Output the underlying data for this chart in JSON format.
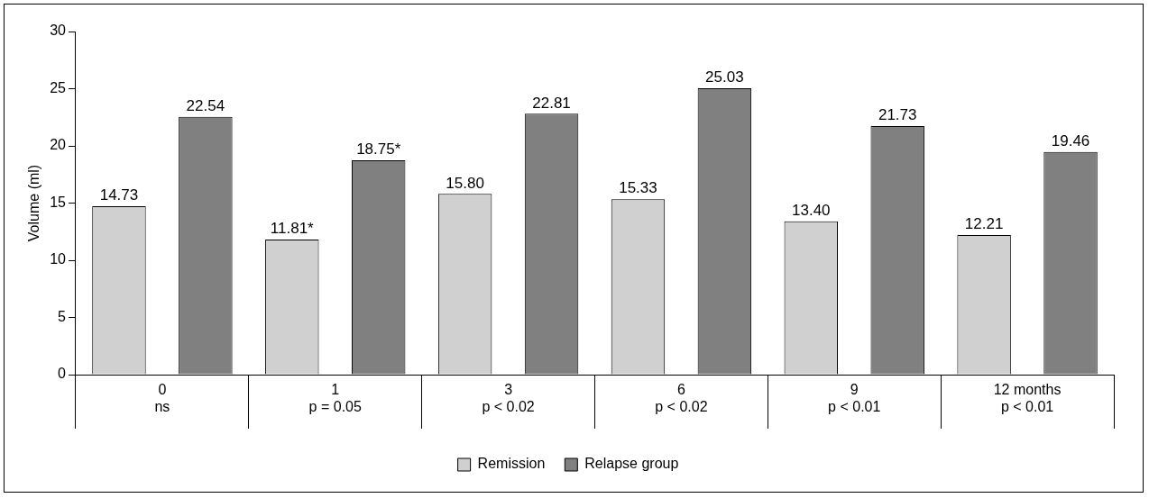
{
  "chart_data": {
    "type": "bar",
    "ylabel": "Volume (ml)",
    "categories": [
      "0\nns",
      "1\np = 0.05",
      "3\np < 0.02",
      "6\np < 0.02",
      "9\np < 0.01",
      "12 months\np < 0.01"
    ],
    "series": [
      {
        "name": "Remission",
        "color": "#d0d0d0",
        "values": [
          14.73,
          11.81,
          15.8,
          15.33,
          13.4,
          12.21
        ],
        "value_labels": [
          "14.73",
          "11.81*",
          "15.80",
          "15.33",
          "13.40",
          "12.21"
        ]
      },
      {
        "name": "Relapse group",
        "color": "#808080",
        "values": [
          22.54,
          18.75,
          22.81,
          25.03,
          21.73,
          19.46
        ],
        "value_labels": [
          "22.54",
          "18.75*",
          "22.81",
          "25.03",
          "21.73",
          "19.46"
        ]
      }
    ],
    "ylim": [
      0,
      30
    ],
    "yticks": [
      0,
      5,
      10,
      15,
      20,
      25,
      30
    ],
    "grid": false,
    "legend": "bottom"
  }
}
